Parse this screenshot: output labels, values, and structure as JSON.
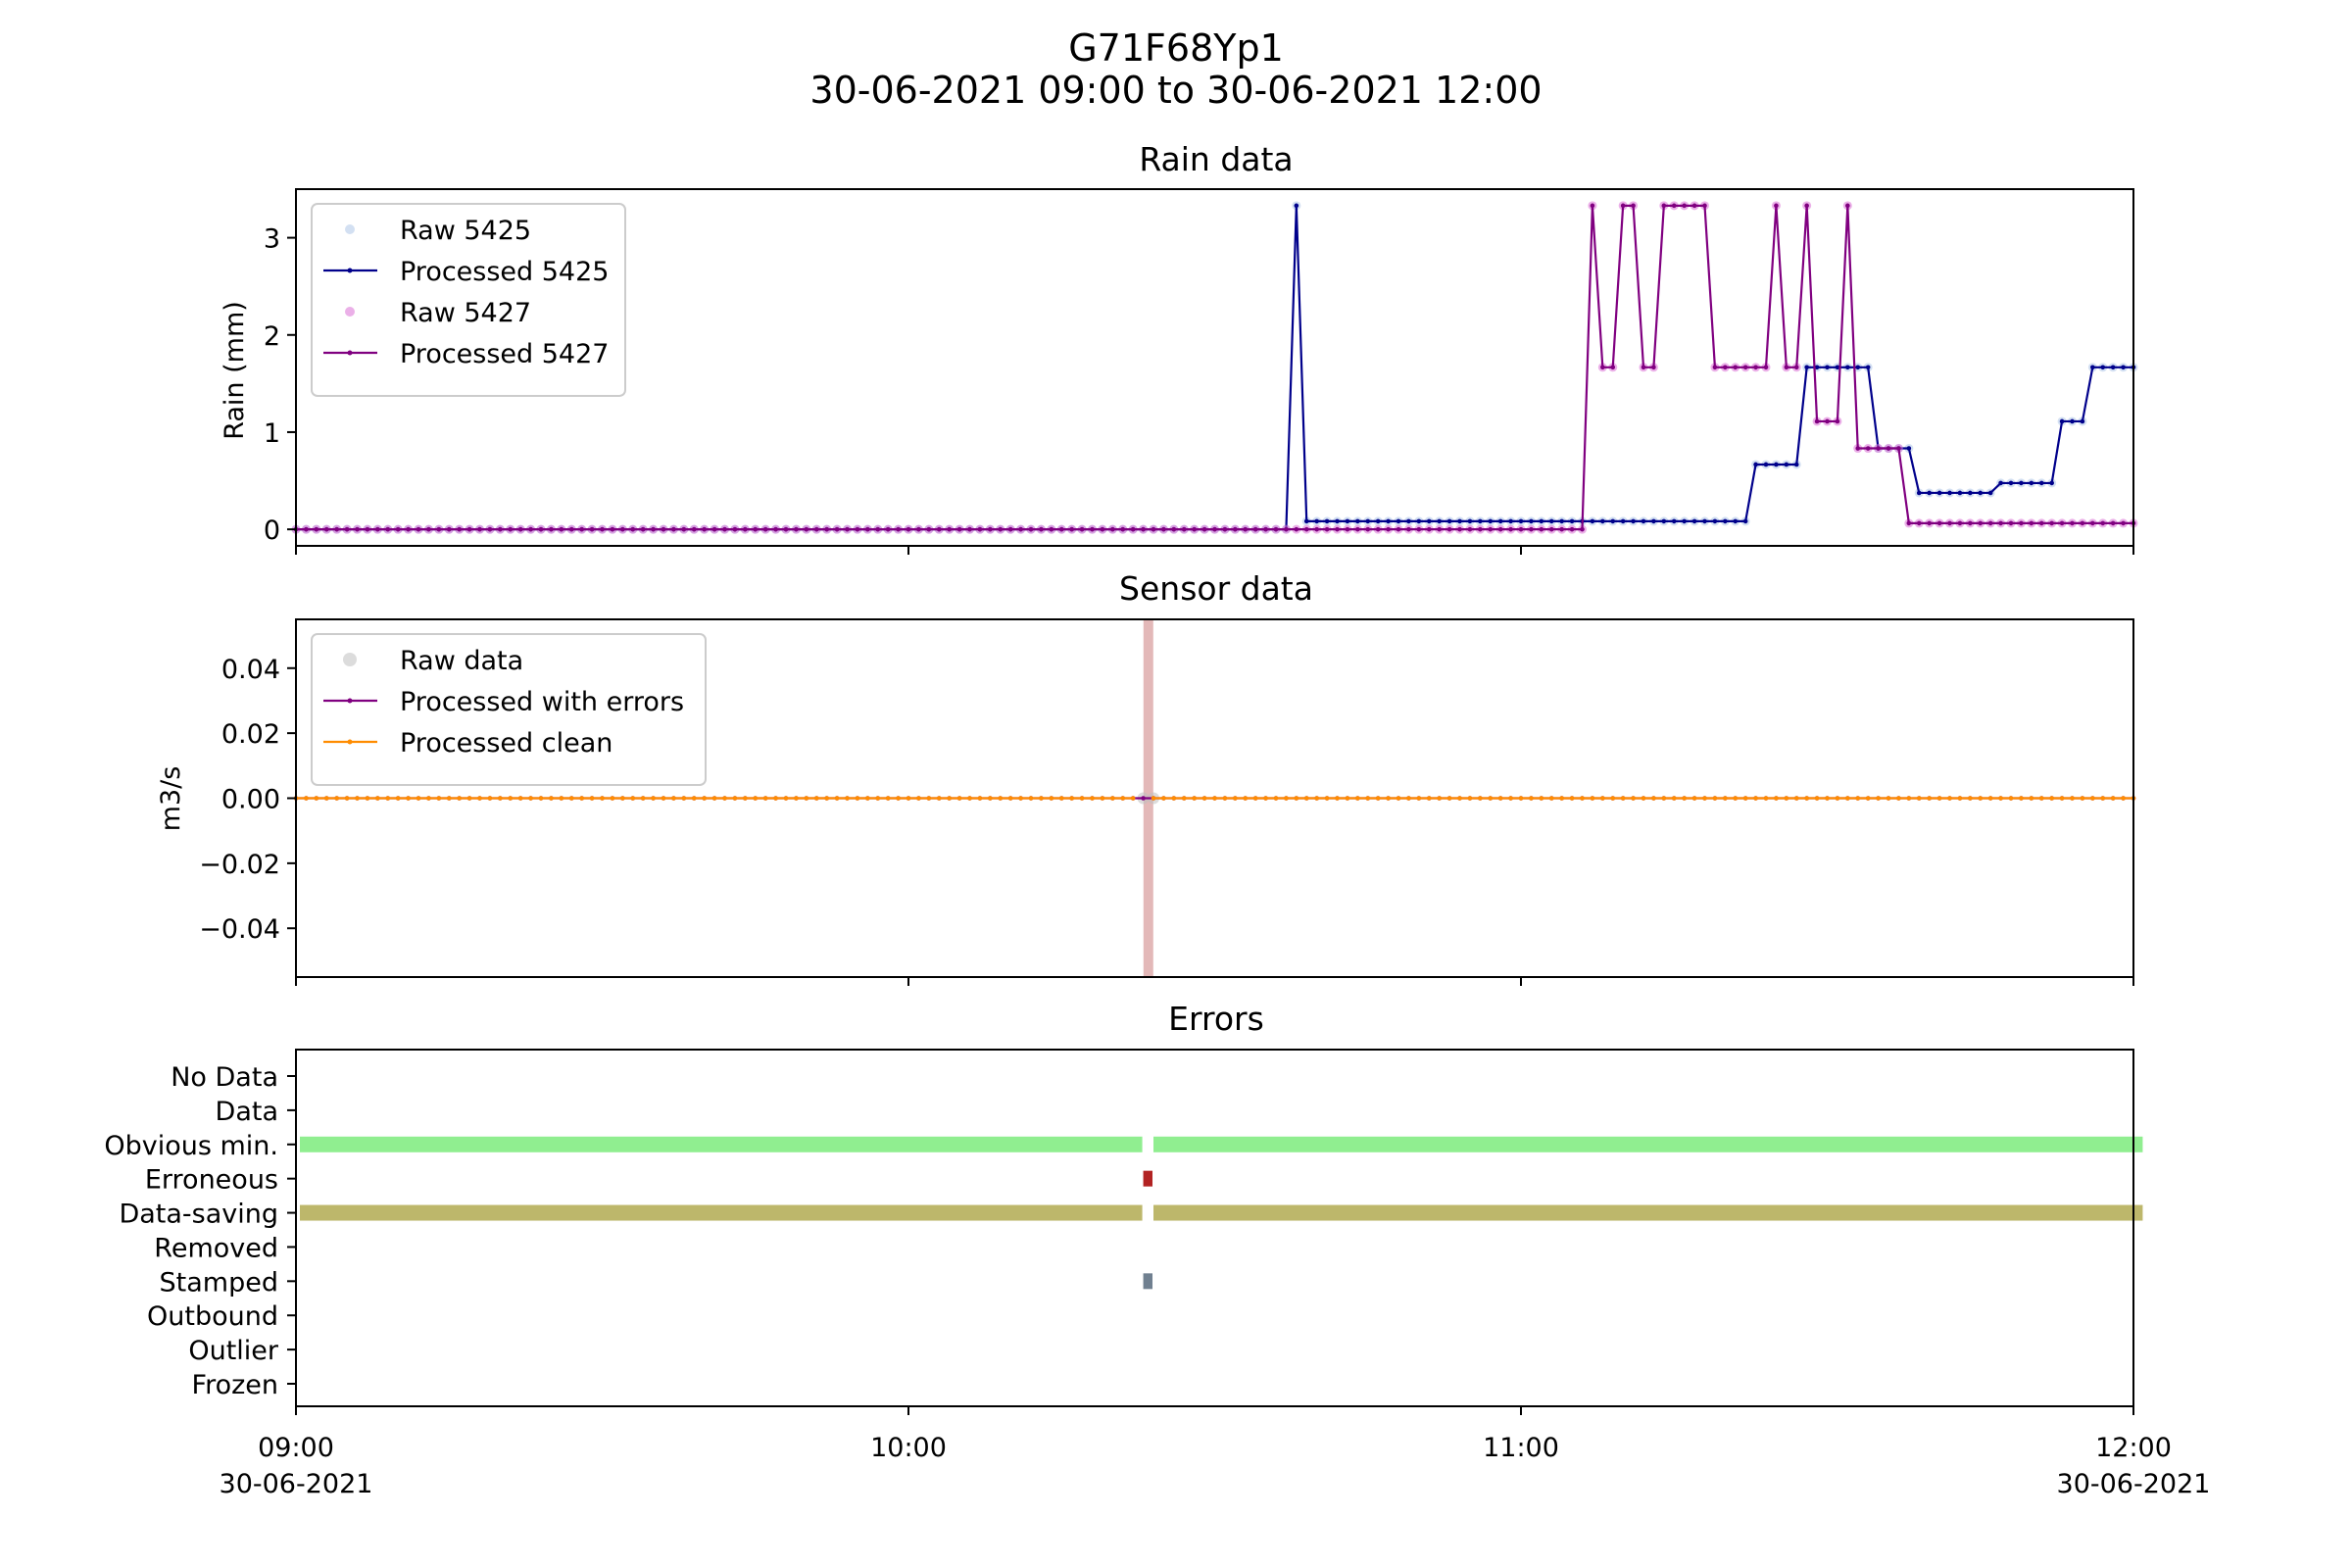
{
  "figure": {
    "title": "G71F68Yp1",
    "subtitle": "30-06-2021 09:00 to 30-06-2021 12:00"
  },
  "x_axis": {
    "start": "09:00",
    "end": "12:00",
    "step_minutes": 1,
    "ticks": [
      {
        "time": "09:00",
        "date": "30-06-2021"
      },
      {
        "time": "10:00",
        "date": ""
      },
      {
        "time": "11:00",
        "date": ""
      },
      {
        "time": "12:00",
        "date": "30-06-2021"
      }
    ]
  },
  "colors": {
    "raw_5425": "#aec7e8",
    "processed_5425": "#00008b",
    "raw_5427": "#da70d6",
    "processed_5427": "#800080",
    "raw_data": "#c0c0c0",
    "processed_errors": "#800080",
    "processed_clean": "#ff8c00",
    "error_band": "#d9a0a0",
    "obvious_min": "#90ee90",
    "erroneous": "#b22222",
    "data_saving": "#bdb76b",
    "stamped": "#708090"
  },
  "chart_data": [
    {
      "type": "line",
      "title": "Rain data",
      "ylabel": "Rain (mm)",
      "ylim": [
        -0.17,
        3.5
      ],
      "yticks": [
        "0",
        "1",
        "2",
        "3"
      ],
      "legend_position": "top-left",
      "series": [
        {
          "name": "Raw 5425",
          "style": "points",
          "color_key": "raw_5425",
          "segments": [
            [
              0,
              97,
              0
            ],
            [
              98,
              98,
              3.33
            ],
            [
              99,
              142,
              0.083
            ],
            [
              143,
              147,
              0.667
            ],
            [
              148,
              154,
              1.667
            ],
            [
              155,
              158,
              0.833
            ],
            [
              159,
              166,
              0.375
            ],
            [
              167,
              172,
              0.476
            ],
            [
              173,
              175,
              1.111
            ],
            [
              176,
              180,
              1.667
            ]
          ]
        },
        {
          "name": "Processed 5425",
          "style": "line",
          "color_key": "processed_5425",
          "segments": [
            [
              0,
              97,
              0
            ],
            [
              98,
              98,
              3.33
            ],
            [
              99,
              142,
              0.083
            ],
            [
              143,
              147,
              0.667
            ],
            [
              148,
              154,
              1.667
            ],
            [
              155,
              158,
              0.833
            ],
            [
              159,
              166,
              0.375
            ],
            [
              167,
              172,
              0.476
            ],
            [
              173,
              175,
              1.111
            ],
            [
              176,
              180,
              1.667
            ]
          ]
        },
        {
          "name": "Raw 5427",
          "style": "points",
          "color_key": "raw_5427",
          "segments": [
            [
              0,
              126,
              0
            ],
            [
              127,
              127,
              3.33
            ],
            [
              128,
              129,
              1.667
            ],
            [
              130,
              131,
              3.33
            ],
            [
              132,
              133,
              1.667
            ],
            [
              134,
              138,
              3.33
            ],
            [
              139,
              144,
              1.667
            ],
            [
              145,
              145,
              3.33
            ],
            [
              146,
              147,
              1.667
            ],
            [
              148,
              148,
              3.33
            ],
            [
              149,
              151,
              1.111
            ],
            [
              152,
              152,
              3.33
            ],
            [
              153,
              157,
              0.833
            ],
            [
              158,
              180,
              0.063
            ]
          ]
        },
        {
          "name": "Processed 5427",
          "style": "line",
          "color_key": "processed_5427",
          "segments": [
            [
              0,
              126,
              0
            ],
            [
              127,
              127,
              3.33
            ],
            [
              128,
              129,
              1.667
            ],
            [
              130,
              131,
              3.33
            ],
            [
              132,
              133,
              1.667
            ],
            [
              134,
              138,
              3.33
            ],
            [
              139,
              144,
              1.667
            ],
            [
              145,
              145,
              3.33
            ],
            [
              146,
              147,
              1.667
            ],
            [
              148,
              148,
              3.33
            ],
            [
              149,
              151,
              1.111
            ],
            [
              152,
              152,
              3.33
            ],
            [
              153,
              157,
              0.833
            ],
            [
              158,
              180,
              0.063
            ]
          ]
        }
      ]
    },
    {
      "type": "line",
      "title": "Sensor data",
      "ylabel": "m3/s",
      "ylim": [
        -0.055,
        0.055
      ],
      "yticks": [
        "−0.04",
        "−0.02",
        "0.00",
        "0.02",
        "0.04"
      ],
      "legend_position": "top-left",
      "error_band_minute": 83,
      "series": [
        {
          "name": "Raw data",
          "style": "points",
          "color_key": "raw_data",
          "segments": [
            [
              83,
              84,
              0
            ]
          ]
        },
        {
          "name": "Processed with errors",
          "style": "line",
          "color_key": "processed_errors",
          "segments": [
            [
              0,
              180,
              0
            ]
          ]
        },
        {
          "name": "Processed clean",
          "style": "line",
          "color_key": "processed_clean",
          "segments": [
            [
              0,
              82,
              0
            ],
            [
              84,
              180,
              0
            ]
          ]
        }
      ]
    },
    {
      "type": "timeline",
      "title": "Errors",
      "categories": [
        "No Data",
        "Data",
        "Obvious min.",
        "Erroneous",
        "Data-saving",
        "Removed",
        "Stamped",
        "Outbound",
        "Outlier",
        "Frozen"
      ],
      "bars": [
        {
          "category": "Obvious min.",
          "color_key": "obvious_min",
          "ranges": [
            [
              0,
              82
            ],
            [
              84,
              180
            ]
          ]
        },
        {
          "category": "Erroneous",
          "color_key": "erroneous",
          "ranges": [
            [
              83,
              83
            ]
          ]
        },
        {
          "category": "Data-saving",
          "color_key": "data_saving",
          "ranges": [
            [
              0,
              82
            ],
            [
              84,
              180
            ]
          ]
        },
        {
          "category": "Stamped",
          "color_key": "stamped",
          "ranges": [
            [
              83,
              83
            ]
          ]
        }
      ]
    }
  ]
}
